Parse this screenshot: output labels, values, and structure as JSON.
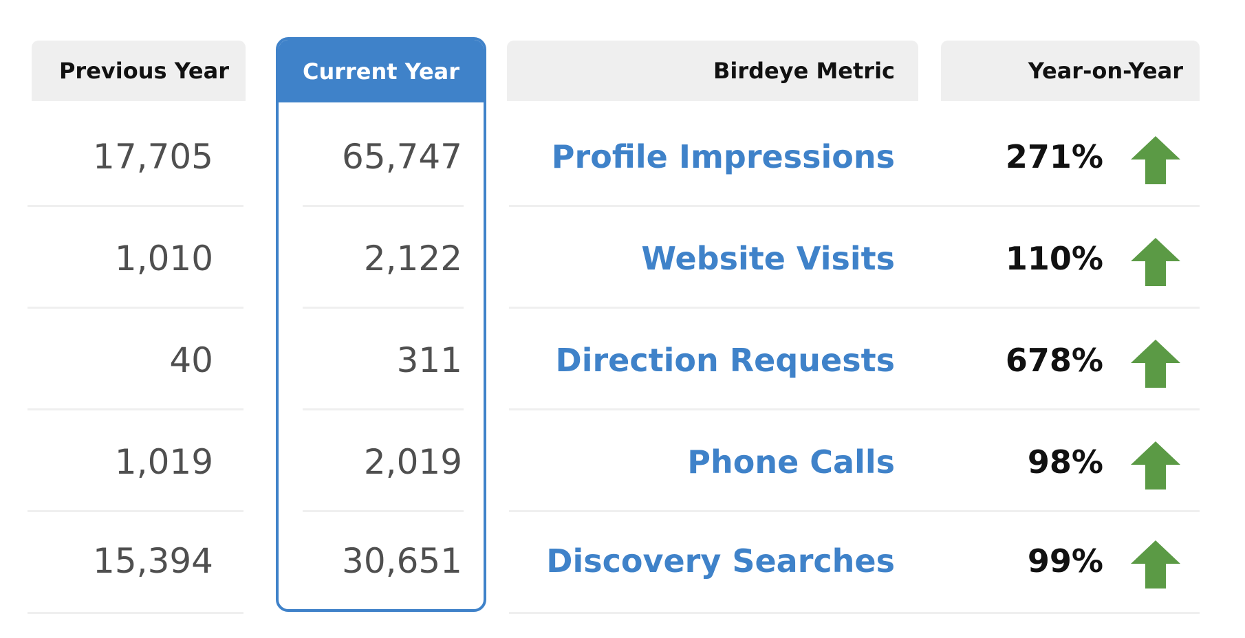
{
  "headers": {
    "previous_year": "Previous Year",
    "current_year": "Current Year",
    "metric": "Birdeye Metric",
    "yoy": "Year-on-Year"
  },
  "rows": [
    {
      "previous": "17,705",
      "current": "65,747",
      "metric": "Profile Impressions",
      "yoy": "271%",
      "trend": "up-arrow-icon"
    },
    {
      "previous": "1,010",
      "current": "2,122",
      "metric": "Website Visits",
      "yoy": "110%",
      "trend": "up-arrow-icon"
    },
    {
      "previous": "40",
      "current": "311",
      "metric": "Direction Requests",
      "yoy": "678%",
      "trend": "up-arrow-icon"
    },
    {
      "previous": "1,019",
      "current": "2,019",
      "metric": "Phone Calls",
      "yoy": "98%",
      "trend": "up-arrow-icon"
    },
    {
      "previous": "15,394",
      "current": "30,651",
      "metric": "Discovery Searches",
      "yoy": "99%",
      "trend": "up-arrow-icon"
    }
  ],
  "colors": {
    "accent_blue": "#3f82c9",
    "header_gray": "#efefef",
    "arrow_green": "#5b9a45"
  }
}
